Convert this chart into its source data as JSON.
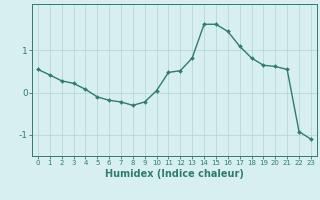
{
  "x": [
    0,
    1,
    2,
    3,
    4,
    5,
    6,
    7,
    8,
    9,
    10,
    11,
    12,
    13,
    14,
    15,
    16,
    17,
    18,
    19,
    20,
    21,
    22,
    23
  ],
  "y": [
    0.55,
    0.42,
    0.28,
    0.22,
    0.08,
    -0.1,
    -0.18,
    -0.22,
    -0.3,
    -0.22,
    0.05,
    0.48,
    0.52,
    0.82,
    1.62,
    1.62,
    1.45,
    1.1,
    0.82,
    0.65,
    0.62,
    0.55,
    -0.92,
    -1.1
  ],
  "line_color": "#2e7d6e",
  "marker": "D",
  "marker_size": 2.0,
  "linewidth": 1.0,
  "xlabel": "Humidex (Indice chaleur)",
  "xlabel_fontsize": 7,
  "background_color": "#d8eff0",
  "grid_color": "#b8d8d8",
  "tick_color": "#2e7d6e",
  "label_color": "#2e7d6e",
  "yticks": [
    -1,
    0,
    1
  ],
  "ylim": [
    -1.5,
    2.1
  ],
  "xlim": [
    -0.5,
    23.5
  ],
  "xtick_fontsize": 5.0,
  "ytick_fontsize": 6.5
}
